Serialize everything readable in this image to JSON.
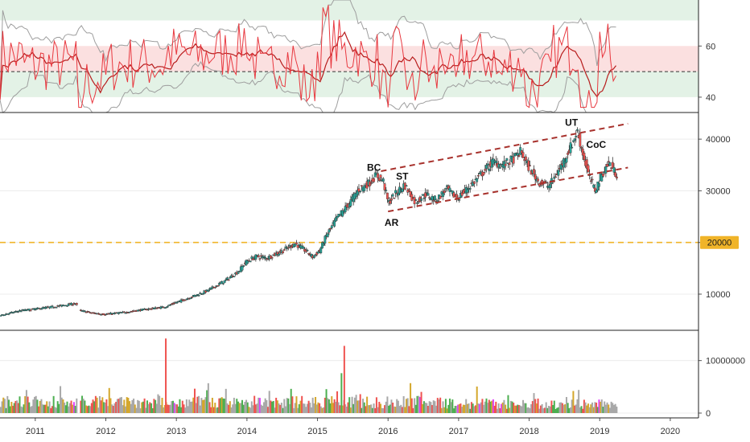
{
  "chart_data": {
    "type": "candlestick",
    "x_axis": {
      "ticks": [
        "2011",
        "2012",
        "2013",
        "2014",
        "2015",
        "2016",
        "2017",
        "2018",
        "2019",
        "2020"
      ],
      "range": [
        2010.5,
        2020.4
      ]
    },
    "panels": [
      {
        "name": "rsi",
        "ylim": [
          34,
          78
        ],
        "y_ticks": [
          "40",
          "60"
        ],
        "y_tick_values": [
          40,
          60
        ],
        "bands": [
          {
            "from": 70,
            "to": 78,
            "color": "#e3f2e6"
          },
          {
            "from": 50,
            "to": 60,
            "color": "#fbe0e0"
          },
          {
            "from": 40,
            "to": 50,
            "color": "#e3f2e6"
          }
        ],
        "reference_line": 50,
        "colors": {
          "rsi": "#e8383f",
          "rsi_ma": "#b71c1c",
          "envelope": "#9e9e9e"
        }
      },
      {
        "name": "price",
        "ylim": [
          3000,
          45000
        ],
        "y_ticks": [
          "10000",
          "20000",
          "30000",
          "40000"
        ],
        "y_tick_values": [
          10000,
          20000,
          30000,
          40000
        ],
        "level": {
          "value": 20000,
          "label": "20000",
          "color": "#f0b429"
        },
        "channel_upper": [
          [
            2015.9,
            33800
          ],
          [
            2019.4,
            43000
          ]
        ],
        "channel_lower": [
          [
            2016.0,
            26000
          ],
          [
            2019.4,
            34500
          ]
        ],
        "channel_color": "#a8322d",
        "colors": {
          "up": "#26a69a",
          "down": "#ef5350"
        },
        "annotations": [
          {
            "text": "BC",
            "x": 2015.8,
            "y": 33900
          },
          {
            "text": "ST",
            "x": 2016.2,
            "y": 32200
          },
          {
            "text": "AR",
            "x": 2016.05,
            "y": 23200
          },
          {
            "text": "UT",
            "x": 2018.6,
            "y": 42600
          },
          {
            "text": "CoC",
            "x": 2018.95,
            "y": 38300
          }
        ],
        "close_path": [
          [
            2010.5,
            5800
          ],
          [
            2010.8,
            6800
          ],
          [
            2011.0,
            7100
          ],
          [
            2011.3,
            7600
          ],
          [
            2011.6,
            8200
          ],
          [
            2011.62,
            6900
          ],
          [
            2011.85,
            6300
          ],
          [
            2012.0,
            6100
          ],
          [
            2012.3,
            6500
          ],
          [
            2012.6,
            7100
          ],
          [
            2012.85,
            7500
          ],
          [
            2013.0,
            8300
          ],
          [
            2013.2,
            9300
          ],
          [
            2013.45,
            10600
          ],
          [
            2013.7,
            12500
          ],
          [
            2013.9,
            14400
          ],
          [
            2014.0,
            16200
          ],
          [
            2014.15,
            17300
          ],
          [
            2014.3,
            17000
          ],
          [
            2014.5,
            18200
          ],
          [
            2014.7,
            19800
          ],
          [
            2014.85,
            18400
          ],
          [
            2014.95,
            17200
          ],
          [
            2015.05,
            18400
          ],
          [
            2015.15,
            21500
          ],
          [
            2015.3,
            24800
          ],
          [
            2015.45,
            27200
          ],
          [
            2015.6,
            30200
          ],
          [
            2015.75,
            31500
          ],
          [
            2015.85,
            33000
          ],
          [
            2015.95,
            32000
          ],
          [
            2016.02,
            27600
          ],
          [
            2016.15,
            29800
          ],
          [
            2016.25,
            31200
          ],
          [
            2016.4,
            27800
          ],
          [
            2016.55,
            29300
          ],
          [
            2016.7,
            28200
          ],
          [
            2016.85,
            30400
          ],
          [
            2017.0,
            28500
          ],
          [
            2017.15,
            30500
          ],
          [
            2017.3,
            32600
          ],
          [
            2017.5,
            35600
          ],
          [
            2017.65,
            35000
          ],
          [
            2017.8,
            36200
          ],
          [
            2017.9,
            37600
          ],
          [
            2018.0,
            34800
          ],
          [
            2018.15,
            31800
          ],
          [
            2018.3,
            30900
          ],
          [
            2018.45,
            34200
          ],
          [
            2018.6,
            38300
          ],
          [
            2018.7,
            41500
          ],
          [
            2018.78,
            37200
          ],
          [
            2018.85,
            33500
          ],
          [
            2018.95,
            30100
          ],
          [
            2019.05,
            33200
          ],
          [
            2019.15,
            35500
          ],
          [
            2019.25,
            33200
          ]
        ]
      },
      {
        "name": "volume",
        "ylim": [
          0,
          15000000
        ],
        "y_ticks": [
          "0",
          "10000000"
        ],
        "y_tick_values": [
          0,
          10000000
        ],
        "colors": {
          "neutral": "#a8a8a8",
          "up": "#4caf50",
          "down": "#ef5350",
          "accent": "#d4a72c",
          "magenta": "#e040fb"
        },
        "spikes": [
          {
            "x": 2012.85,
            "value": 14200000,
            "color": "#ef5350"
          },
          {
            "x": 2015.38,
            "value": 12800000,
            "color": "#ef5350"
          },
          {
            "x": 2015.34,
            "value": 7600000,
            "color": "#4caf50"
          }
        ]
      }
    ]
  }
}
